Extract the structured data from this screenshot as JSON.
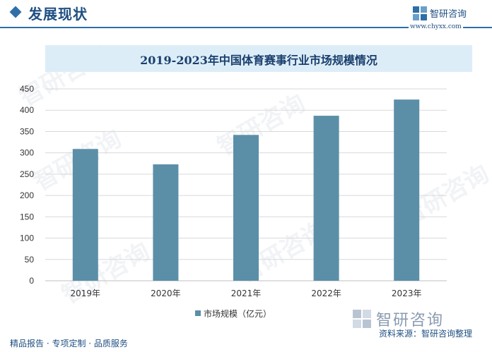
{
  "header": {
    "section_title": "发展现状",
    "brand_name": "智研咨询",
    "brand_url": "www.chyxx.com"
  },
  "chart_data": {
    "type": "bar",
    "title": "2019-2023年中国体育赛事行业市场规模情况",
    "categories": [
      "2019年",
      "2020年",
      "2021年",
      "2022年",
      "2023年"
    ],
    "series": [
      {
        "name": "市场规模（亿元）",
        "values": [
          309,
          273,
          342,
          387,
          425
        ],
        "color": "#5b8fa8"
      }
    ],
    "ylim": [
      0,
      450
    ],
    "yticks": [
      0,
      50,
      100,
      150,
      200,
      250,
      300,
      350,
      400,
      450
    ],
    "grid": true,
    "legend": "bottom"
  },
  "footer": {
    "tagline": "精品报告 · 专项定制 · 品质服务",
    "brand": "智研咨询",
    "source": "资料来源：智研咨询整理"
  },
  "watermark": "智研咨询"
}
